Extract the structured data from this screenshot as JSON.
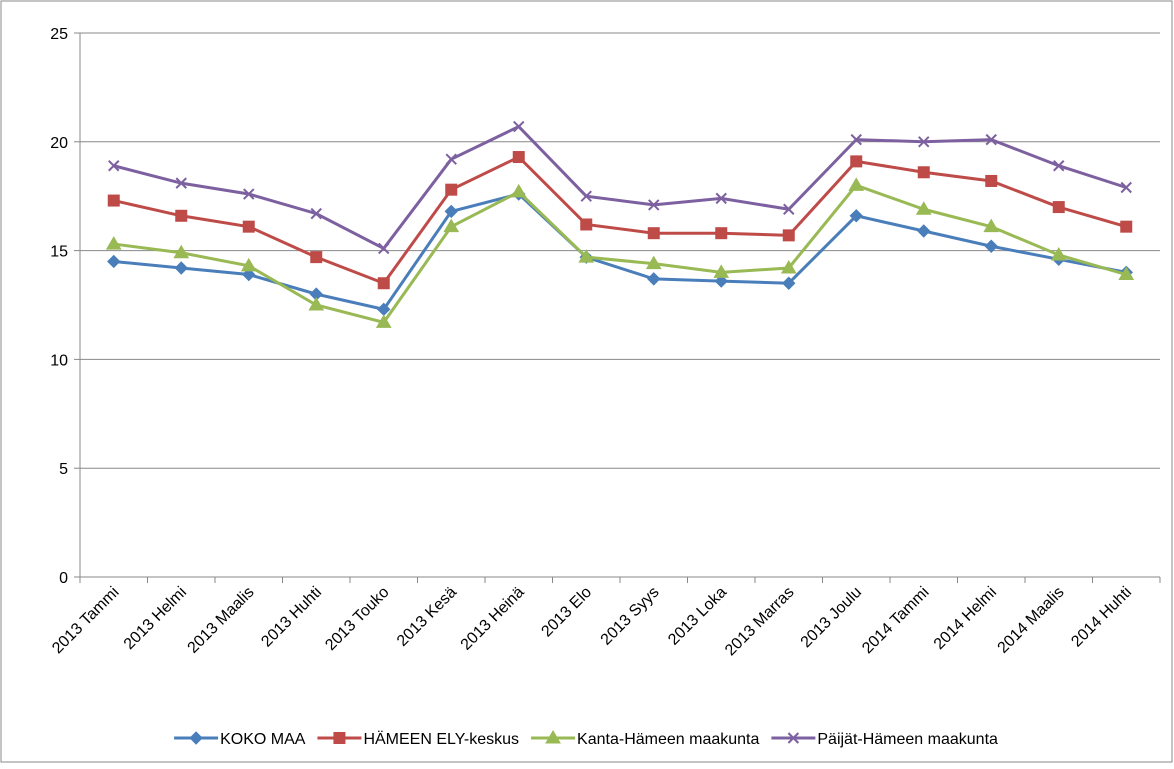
{
  "chart_data": {
    "type": "line",
    "categories": [
      "2013 Tammi",
      "2013 Helmi",
      "2013 Maalis",
      "2013 Huhti",
      "2013 Touko",
      "2013 Kesä",
      "2013 Heinä",
      "2013 Elo",
      "2013 Syys",
      "2013 Loka",
      "2013 Marras",
      "2013 Joulu",
      "2014 Tammi",
      "2014 Helmi",
      "2014 Maalis",
      "2014 Huhti"
    ],
    "series": [
      {
        "name": "KOKO MAA",
        "color": "#4a7ebb",
        "marker": "diamond",
        "values": [
          14.5,
          14.2,
          13.9,
          13.0,
          12.3,
          16.8,
          17.6,
          14.7,
          13.7,
          13.6,
          13.5,
          16.6,
          15.9,
          15.2,
          14.6,
          14.0
        ]
      },
      {
        "name": "HÄMEEN ELY-keskus",
        "color": "#be4b48",
        "marker": "square",
        "values": [
          17.3,
          16.6,
          16.1,
          14.7,
          13.5,
          17.8,
          19.3,
          16.2,
          15.8,
          15.8,
          15.7,
          19.1,
          18.6,
          18.2,
          17.0,
          16.1
        ]
      },
      {
        "name": "Kanta-Hämeen maakunta",
        "color": "#98b954",
        "marker": "triangle",
        "values": [
          15.3,
          14.9,
          14.3,
          12.5,
          11.7,
          16.1,
          17.7,
          14.7,
          14.4,
          14.0,
          14.2,
          18.0,
          16.9,
          16.1,
          14.8,
          13.9
        ]
      },
      {
        "name": "Päijät-Hämeen maakunta",
        "color": "#7d60a0",
        "marker": "x",
        "values": [
          18.9,
          18.1,
          17.6,
          16.7,
          15.1,
          19.2,
          20.7,
          17.5,
          17.1,
          17.4,
          16.9,
          20.1,
          20.0,
          20.1,
          18.9,
          17.9
        ]
      }
    ],
    "ylim": [
      0,
      25
    ],
    "yticks": [
      0,
      5,
      10,
      15,
      20,
      25
    ],
    "grid": true,
    "legend": "bottom"
  }
}
